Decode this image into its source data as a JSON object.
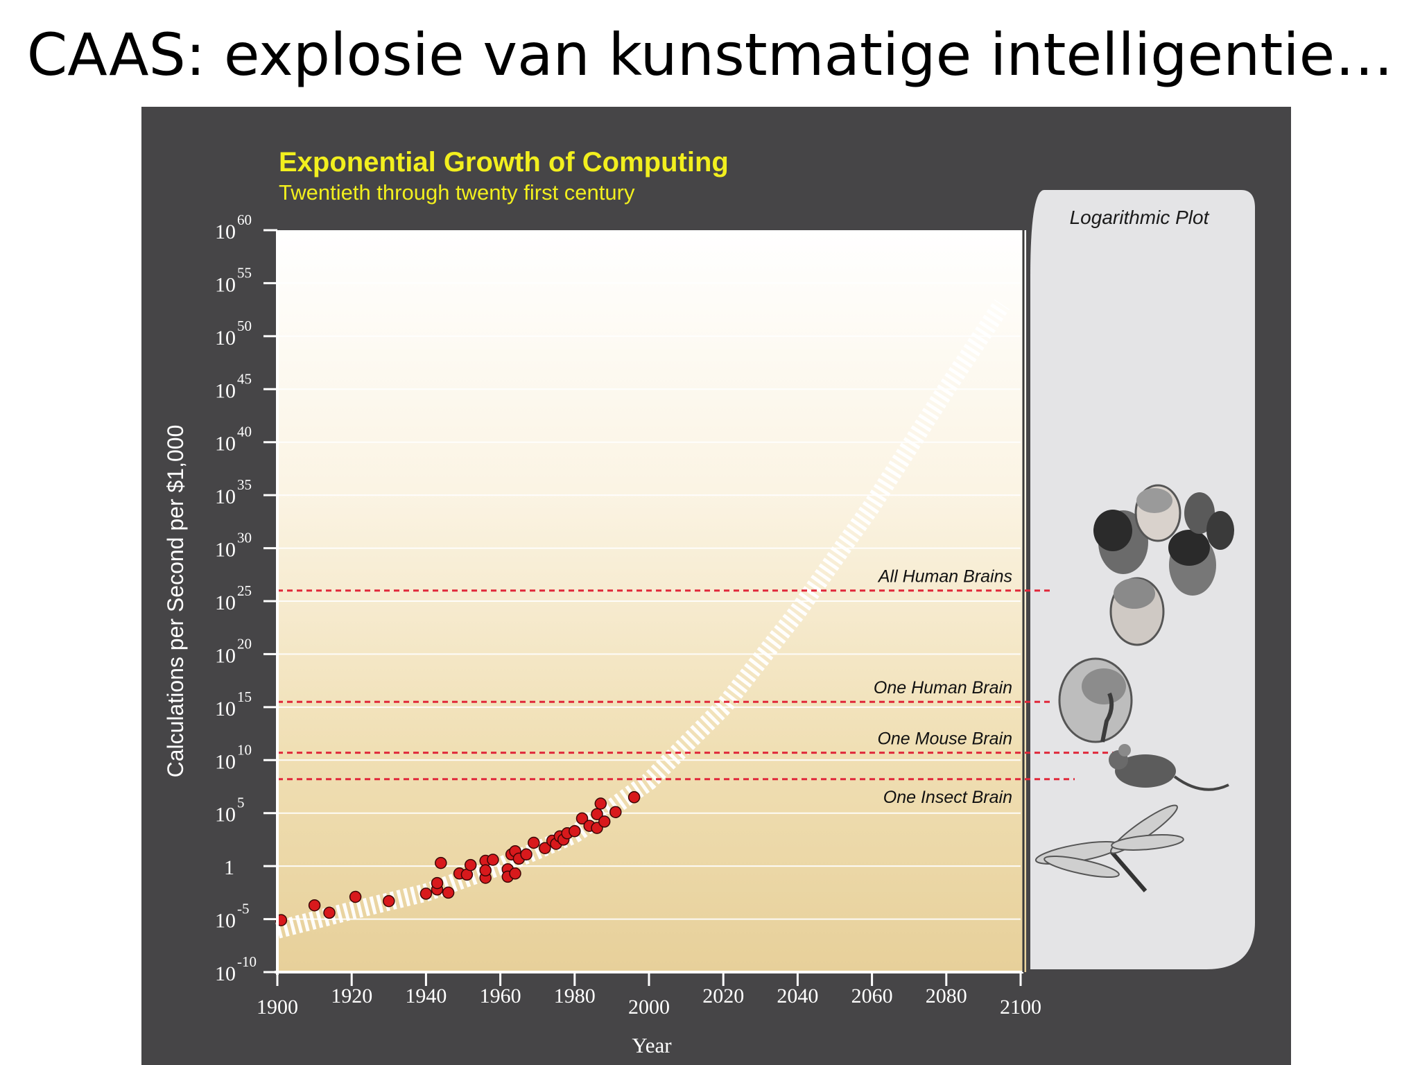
{
  "slide": {
    "title": "CAAS: explosie van kunstmatige intelligentie…"
  },
  "colors": {
    "panel_bg": "#464547",
    "chart_title": "#f2ef1e",
    "data_point": "#d8191c",
    "threshold_line": "#e0283a",
    "side_panel": "#e4e4e6",
    "axis_text": "#ffffff"
  },
  "side_panel": {
    "title": "Logarithmic Plot",
    "illustrations": [
      "human-heads-icon",
      "human-head-brain-icon",
      "mouse-icon",
      "dragonfly-icon"
    ]
  },
  "chart_data": {
    "type": "scatter",
    "title": "Exponential Growth of Computing",
    "subtitle": "Twentieth through twenty first century",
    "xlabel": "Year",
    "ylabel": "Calculations per Second per $1,000",
    "y_scale": "log10",
    "xlim": [
      1900,
      2100
    ],
    "ylim_exponent": [
      -10,
      60
    ],
    "x_ticks": [
      "1900",
      "1920",
      "1940",
      "1960",
      "1980",
      "2000",
      "2020",
      "2040",
      "2060",
      "2080",
      "2100"
    ],
    "y_ticks": [
      {
        "base": "10",
        "exp": "60",
        "value": 60
      },
      {
        "base": "10",
        "exp": "55",
        "value": 55
      },
      {
        "base": "10",
        "exp": "50",
        "value": 50
      },
      {
        "base": "10",
        "exp": "45",
        "value": 45
      },
      {
        "base": "10",
        "exp": "40",
        "value": 40
      },
      {
        "base": "10",
        "exp": "35",
        "value": 35
      },
      {
        "base": "10",
        "exp": "30",
        "value": 30
      },
      {
        "base": "10",
        "exp": "25",
        "value": 25
      },
      {
        "base": "10",
        "exp": "20",
        "value": 20
      },
      {
        "base": "10",
        "exp": "15",
        "value": 15
      },
      {
        "base": "10",
        "exp": "10",
        "value": 10
      },
      {
        "base": "10",
        "exp": "5",
        "value": 5
      },
      {
        "base": "1",
        "exp": "",
        "value": 0
      },
      {
        "base": "10",
        "exp": "-5",
        "value": -5
      },
      {
        "base": "10",
        "exp": "-10",
        "value": -10
      }
    ],
    "grid": true,
    "legend": "none",
    "thresholds": [
      {
        "label": "All Human Brains",
        "value": 26
      },
      {
        "label": "One Human Brain",
        "value": 15.5
      },
      {
        "label": "One Mouse Brain",
        "value": 10.7
      },
      {
        "label": "One Insect Brain",
        "value": 8.2
      }
    ],
    "trend": {
      "x": [
        1900,
        1920,
        1940,
        1960,
        1980,
        2000,
        2020,
        2040,
        2060,
        2080,
        2095
      ],
      "y": [
        -6,
        -4.2,
        -2.5,
        0,
        3,
        8,
        15,
        24,
        34,
        45,
        53
      ]
    },
    "points": {
      "x": [
        1901,
        1910,
        1914,
        1921,
        1930,
        1940,
        1943,
        1943,
        1944,
        1946,
        1949,
        1951,
        1952,
        1956,
        1956,
        1956,
        1958,
        1962,
        1962,
        1963,
        1964,
        1964,
        1965,
        1967,
        1969,
        1972,
        1974,
        1975,
        1976,
        1977,
        1978,
        1980,
        1982,
        1984,
        1986,
        1986,
        1987,
        1988,
        1991,
        1996
      ],
      "y": [
        -5.1,
        -3.7,
        -4.4,
        -2.9,
        -3.3,
        -2.6,
        -2.2,
        -1.6,
        0.3,
        -2.5,
        -0.7,
        -0.8,
        0.1,
        -1.1,
        0.5,
        -0.4,
        0.6,
        -0.3,
        -1.0,
        1.1,
        -0.7,
        1.4,
        0.7,
        1.1,
        2.2,
        1.7,
        2.4,
        2.1,
        2.8,
        2.5,
        3.1,
        3.3,
        4.5,
        3.8,
        4.9,
        3.6,
        5.9,
        4.2,
        5.1,
        6.5
      ]
    }
  }
}
